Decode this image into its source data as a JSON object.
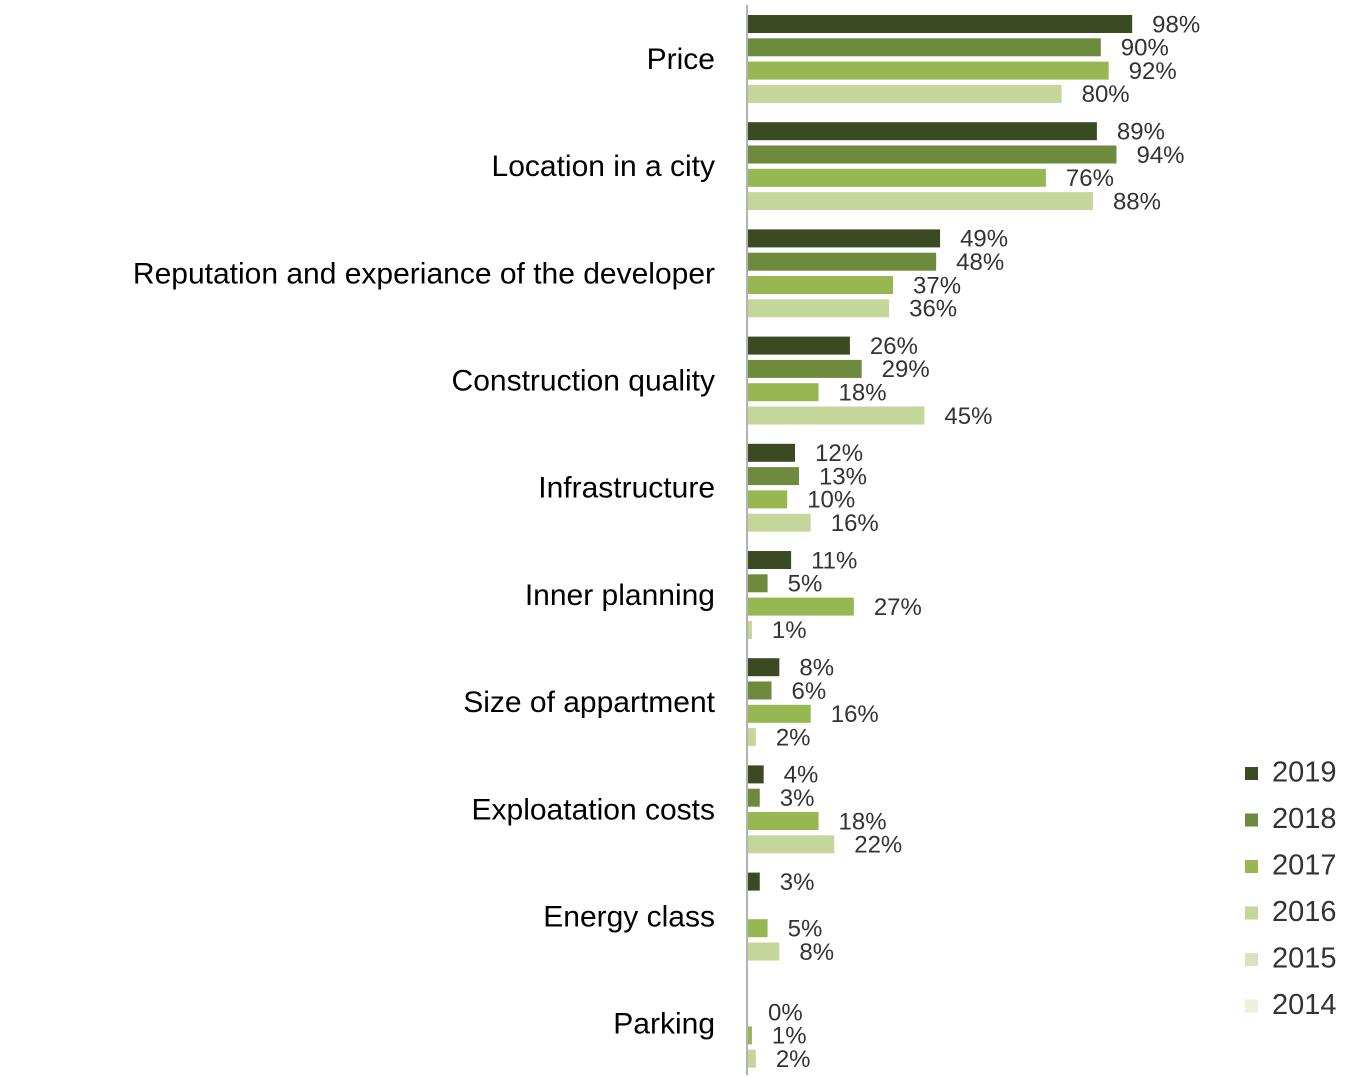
{
  "chart_data": {
    "type": "bar",
    "orientation": "horizontal",
    "categories": [
      "Price",
      "Location in a city",
      "Reputation and experiance of the developer",
      "Construction quality",
      "Infrastructure",
      "Inner planning",
      "Size of appartment",
      "Exploatation costs",
      "Energy class",
      "Parking"
    ],
    "series": [
      {
        "name": "2019",
        "color": "#3b4a23",
        "values": [
          98,
          89,
          49,
          26,
          12,
          11,
          8,
          4,
          3,
          null
        ],
        "value_labels": [
          "98%",
          "89%",
          "49%",
          "26%",
          "12%",
          "11%",
          "8%",
          "4%",
          "3%",
          null
        ]
      },
      {
        "name": "2018",
        "color": "#6e8b3d",
        "values": [
          90,
          94,
          48,
          29,
          13,
          5,
          6,
          3,
          null,
          0
        ],
        "value_labels": [
          "90%",
          "94%",
          "48%",
          "29%",
          "13%",
          "5%",
          "6%",
          "3%",
          null,
          "0%"
        ]
      },
      {
        "name": "2017",
        "color": "#97b753",
        "values": [
          92,
          76,
          37,
          18,
          10,
          27,
          16,
          18,
          5,
          1
        ],
        "value_labels": [
          "92%",
          "76%",
          "37%",
          "18%",
          "10%",
          "27%",
          "16%",
          "18%",
          "5%",
          "1%"
        ]
      },
      {
        "name": "2016",
        "color": "#c5d69b",
        "values": [
          80,
          88,
          36,
          45,
          16,
          1,
          2,
          22,
          8,
          2
        ],
        "value_labels": [
          "80%",
          "88%",
          "36%",
          "45%",
          "16%",
          "1%",
          "2%",
          "22%",
          "8%",
          "2%"
        ]
      },
      {
        "name": "2015",
        "color": "#d8e4bc",
        "values": [
          null,
          null,
          null,
          null,
          null,
          null,
          null,
          null,
          null,
          null
        ]
      },
      {
        "name": "2014",
        "color": "#ebf1dd",
        "values": [
          null,
          null,
          null,
          null,
          null,
          null,
          null,
          null,
          null,
          null
        ]
      }
    ]
  }
}
